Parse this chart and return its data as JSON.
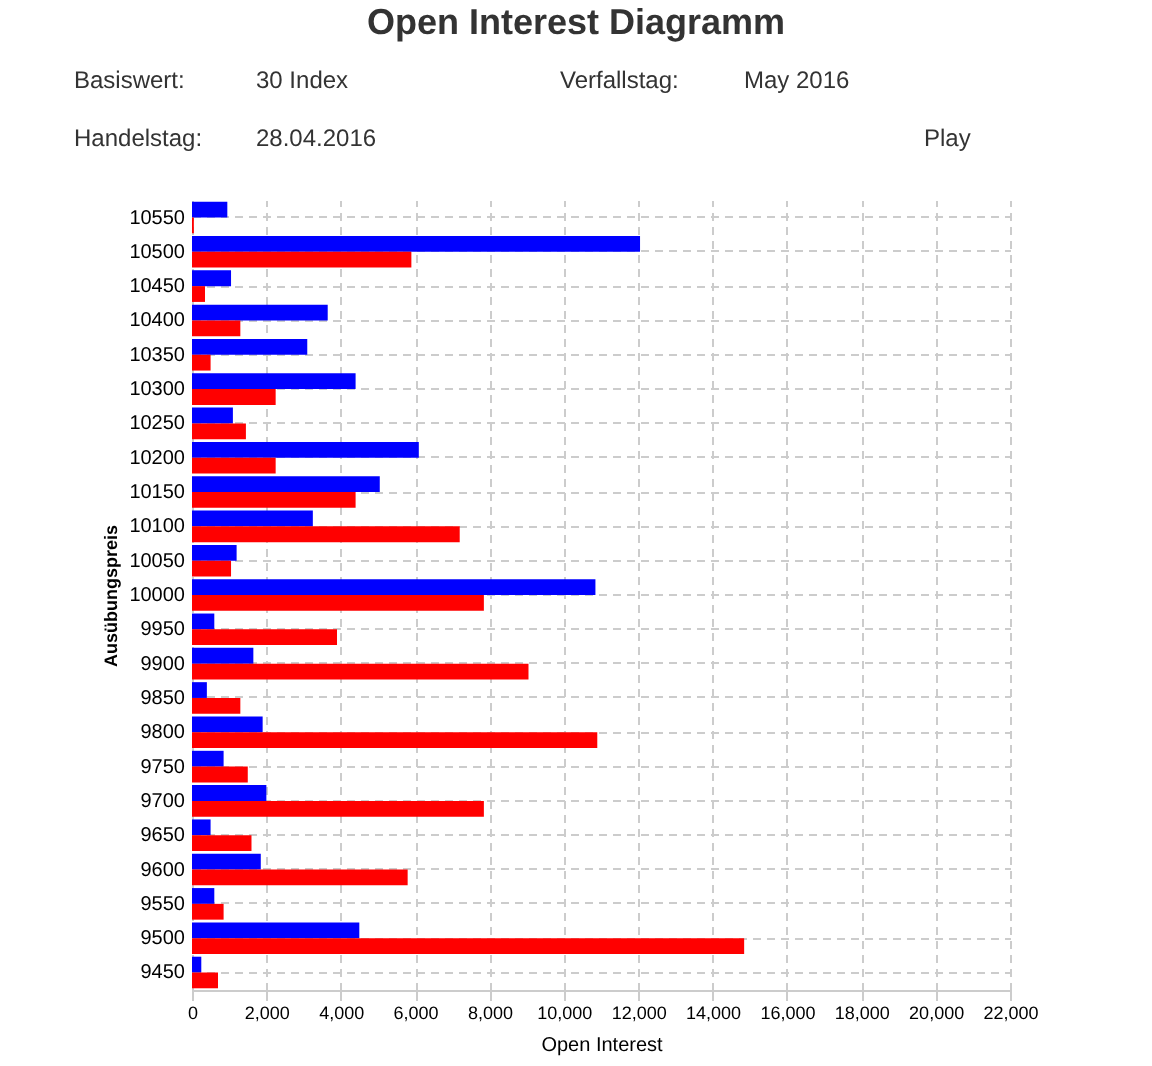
{
  "chart_data": {
    "type": "bar",
    "orientation": "horizontal",
    "title": "Open Interest Diagramm",
    "xlabel": "Open Interest",
    "ylabel": "Ausübungspreis",
    "categories": [
      "10550",
      "10500",
      "10450",
      "10400",
      "10350",
      "10300",
      "10250",
      "10200",
      "10150",
      "10100",
      "10050",
      "10000",
      "9950",
      "9900",
      "9850",
      "9800",
      "9750",
      "9700",
      "9650",
      "9600",
      "9550",
      "9500",
      "9450"
    ],
    "series": [
      {
        "color": "#0000ff",
        "values": [
          950,
          12050,
          1050,
          3650,
          3100,
          4400,
          1100,
          6100,
          5050,
          3250,
          1200,
          10850,
          600,
          1650,
          400,
          1900,
          850,
          2000,
          500,
          1850,
          600,
          4500,
          250
        ]
      },
      {
        "color": "#ff0000",
        "values": [
          50,
          5900,
          350,
          1300,
          500,
          2250,
          1450,
          2250,
          4400,
          7200,
          1050,
          7850,
          3900,
          9050,
          1300,
          10900,
          1500,
          7850,
          1600,
          5800,
          850,
          14850,
          700
        ]
      }
    ],
    "xlim": [
      0,
      22000
    ],
    "xticks": [
      0,
      {
        "value": 2000,
        "label": "2,000"
      },
      {
        "value": 4000,
        "label": "4,000"
      },
      {
        "value": 6000,
        "label": "6,000"
      },
      {
        "value": 8000,
        "label": "8,000"
      },
      {
        "value": 10000,
        "label": "10,000"
      },
      {
        "value": 12000,
        "label": "12,000"
      },
      {
        "value": 14000,
        "label": "14,000"
      },
      {
        "value": 16000,
        "label": "16,000"
      },
      {
        "value": 18000,
        "label": "18,000"
      },
      {
        "value": 20000,
        "label": "20,000"
      },
      {
        "value": 22000,
        "label": "22,000"
      }
    ],
    "grid": true,
    "legend": false,
    "annotations": [
      "Basiswert:",
      "30 Index",
      "Verfallstag:",
      "May 2016",
      "Handelstag:",
      "28.04.2016",
      "Play"
    ]
  }
}
